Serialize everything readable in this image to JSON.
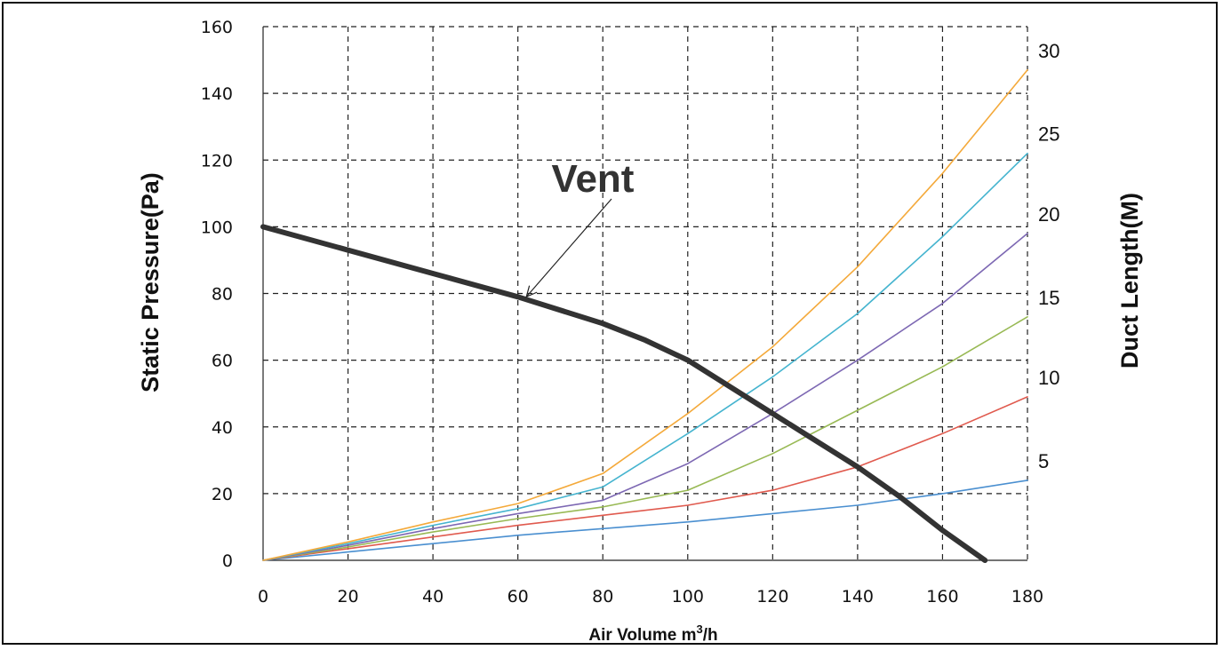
{
  "chart_data": {
    "type": "line",
    "xlabel_prefix": "Air Volume m",
    "xlabel_sup": "3",
    "xlabel_suffix": "/h",
    "ylabel": "Static Pressure(Pa)",
    "y2label": "Duct Length(M)",
    "xlim": [
      0,
      180
    ],
    "ylim": [
      0,
      160
    ],
    "x_ticks": [
      0,
      20,
      40,
      60,
      80,
      100,
      120,
      140,
      160,
      180
    ],
    "y_ticks": [
      0,
      20,
      40,
      60,
      80,
      100,
      120,
      140,
      160
    ],
    "grid": true,
    "annotation": {
      "text": "Vent",
      "points_to": [
        62,
        79
      ]
    },
    "series": [
      {
        "name": "Vent",
        "color": "#333333",
        "x": [
          0,
          20,
          40,
          60,
          80,
          90,
          100,
          110,
          120,
          130,
          140,
          150,
          160,
          170
        ],
        "y": [
          100,
          93,
          86,
          79,
          71,
          66,
          60,
          52,
          44,
          36,
          28,
          19,
          9,
          0
        ]
      },
      {
        "name": "5",
        "color": "#4a8fd0",
        "x": [
          0,
          20,
          40,
          60,
          80,
          100,
          120,
          140,
          160,
          180
        ],
        "y": [
          0,
          2.5,
          5,
          7.5,
          9.5,
          11.5,
          14,
          16.5,
          20,
          24
        ]
      },
      {
        "name": "10",
        "color": "#e05a4e",
        "x": [
          0,
          20,
          40,
          60,
          80,
          100,
          120,
          140,
          160,
          180
        ],
        "y": [
          0,
          3.5,
          7,
          10.5,
          13.5,
          16.5,
          21,
          28,
          38,
          49
        ]
      },
      {
        "name": "15",
        "color": "#98b954",
        "x": [
          0,
          20,
          40,
          60,
          80,
          100,
          120,
          140,
          160,
          180
        ],
        "y": [
          0,
          4,
          8.5,
          12.5,
          16,
          21,
          32,
          45,
          58,
          73
        ]
      },
      {
        "name": "20",
        "color": "#7d68b3",
        "x": [
          0,
          20,
          40,
          60,
          80,
          100,
          120,
          140,
          160,
          180
        ],
        "y": [
          0,
          4.5,
          9.5,
          14,
          18,
          29,
          44,
          60,
          77,
          98
        ]
      },
      {
        "name": "25",
        "color": "#45b4cf",
        "x": [
          0,
          20,
          40,
          60,
          80,
          100,
          120,
          140,
          160,
          180
        ],
        "y": [
          0,
          5,
          10.5,
          15.5,
          22,
          38,
          55,
          74,
          97,
          122
        ]
      },
      {
        "name": "30",
        "color": "#f4a93a",
        "x": [
          0,
          20,
          40,
          60,
          80,
          100,
          120,
          140,
          160,
          180
        ],
        "y": [
          0,
          5.5,
          11.5,
          17,
          26,
          44,
          64,
          88,
          116,
          147
        ]
      }
    ],
    "right_labels": [
      {
        "text": "30",
        "y": 147
      },
      {
        "text": "25",
        "y": 122
      },
      {
        "text": "20",
        "y": 98
      },
      {
        "text": "15",
        "y": 73
      },
      {
        "text": "10",
        "y": 49
      },
      {
        "text": "5",
        "y": 24
      }
    ]
  }
}
